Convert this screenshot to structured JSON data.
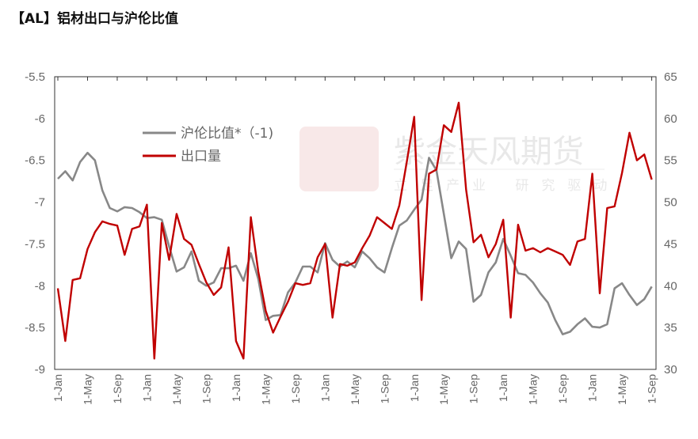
{
  "title": "【AL】铝材出口与沪伦比值",
  "watermark": {
    "brand": "紫金天风期货",
    "slogan": "立足产业 研究驱动",
    "seal": "紫金天风"
  },
  "chart_data": {
    "type": "line",
    "title": "【AL】铝材出口与沪伦比值",
    "x_tick_labels": [
      "1-Jan",
      "1-May",
      "1-Sep",
      "1-Jan",
      "1-May",
      "1-Sep",
      "1-Jan",
      "1-May",
      "1-Sep",
      "1-Jan",
      "1-May",
      "1-Sep",
      "1-Jan",
      "1-May",
      "1-Sep",
      "1-Jan",
      "1-May",
      "1-Sep",
      "1-Jan",
      "1-May",
      "1-Sep"
    ],
    "x_tick_every_months": 4,
    "left_axis": {
      "ylim": [
        -9,
        -5.5
      ],
      "ticks": [
        "-9",
        "-8.5",
        "-8",
        "-7.5",
        "-7",
        "-6.5",
        "-6",
        "-5.5"
      ]
    },
    "right_axis": {
      "ylim": [
        30,
        65
      ],
      "ticks": [
        "30",
        "35",
        "40",
        "45",
        "50",
        "55",
        "60",
        "65"
      ]
    },
    "legend_position": "top-left",
    "series": [
      {
        "name": "沪伦比值*（-1)",
        "axis": "left",
        "color": "#888888",
        "values": [
          -6.72,
          -6.63,
          -6.74,
          -6.52,
          -6.41,
          -6.5,
          -6.86,
          -7.07,
          -7.11,
          -7.06,
          -7.07,
          -7.12,
          -7.19,
          -7.18,
          -7.21,
          -7.53,
          -7.83,
          -7.78,
          -7.59,
          -7.94,
          -8.0,
          -7.96,
          -7.79,
          -7.79,
          -7.76,
          -7.94,
          -7.61,
          -7.92,
          -8.41,
          -8.36,
          -8.35,
          -8.08,
          -7.96,
          -7.77,
          -7.77,
          -7.84,
          -7.49,
          -7.69,
          -7.77,
          -7.71,
          -7.78,
          -7.59,
          -7.67,
          -7.78,
          -7.84,
          -7.55,
          -7.28,
          -7.22,
          -7.09,
          -6.97,
          -6.47,
          -6.62,
          -7.14,
          -7.67,
          -7.47,
          -7.56,
          -8.19,
          -8.11,
          -7.84,
          -7.72,
          -7.44,
          -7.64,
          -7.85,
          -7.87,
          -7.96,
          -8.09,
          -8.2,
          -8.41,
          -8.58,
          -8.55,
          -8.46,
          -8.39,
          -8.49,
          -8.5,
          -8.46,
          -8.03,
          -7.97,
          -8.11,
          -8.23,
          -8.16,
          -8.01
        ]
      },
      {
        "name": "出口量",
        "axis": "right",
        "color": "#C00000",
        "values": [
          39.7,
          33.4,
          40.7,
          40.9,
          44.4,
          46.4,
          47.7,
          47.4,
          47.2,
          43.7,
          46.8,
          47.1,
          49.7,
          31.3,
          47.5,
          43.1,
          48.6,
          45.6,
          44.9,
          42.6,
          40.4,
          38.9,
          39.8,
          44.6,
          33.4,
          31.3,
          48.2,
          41.7,
          37.0,
          34.4,
          36.3,
          38.1,
          40.3,
          40.1,
          40.3,
          43.4,
          45.0,
          36.2,
          42.6,
          42.4,
          42.8,
          44.5,
          46.0,
          48.2,
          47.5,
          46.8,
          49.6,
          54.8,
          60.2,
          38.3,
          53.4,
          53.9,
          59.2,
          58.4,
          61.9,
          51.5,
          45.2,
          46.1,
          43.4,
          45.0,
          47.9,
          36.2,
          47.3,
          44.2,
          44.5,
          44.0,
          44.5,
          44.1,
          43.7,
          42.5,
          45.3,
          45.6,
          53.4,
          39.1,
          49.3,
          49.5,
          53.5,
          58.3,
          55.0,
          55.7,
          52.7
        ]
      }
    ]
  }
}
